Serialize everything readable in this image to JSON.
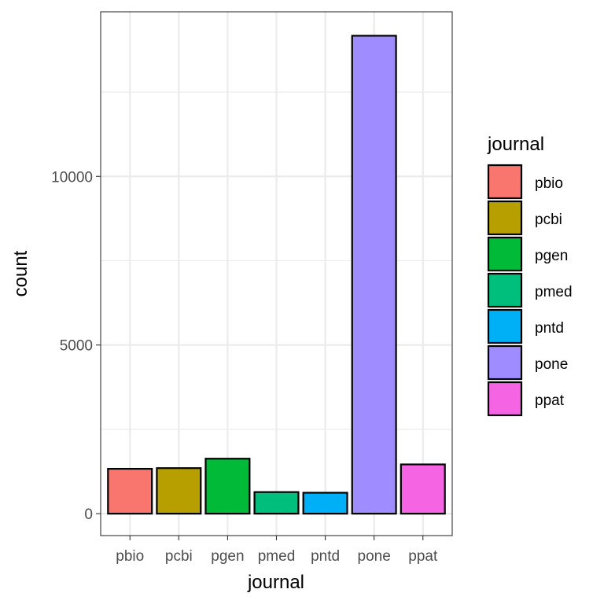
{
  "chart_data": {
    "type": "bar",
    "title": "",
    "xlabel": "journal",
    "ylabel": "count",
    "categories": [
      "pbio",
      "pcbi",
      "pgen",
      "pmed",
      "pntd",
      "pone",
      "ppat"
    ],
    "values": [
      1330,
      1350,
      1630,
      640,
      620,
      14170,
      1460
    ],
    "colors": [
      "#F8766D",
      "#B79F00",
      "#00BA38",
      "#00BF7D",
      "#00B0F6",
      "#9F8CFF",
      "#F564E3"
    ],
    "ylim": [
      -650,
      14880
    ],
    "y_ticks": [
      0,
      5000,
      10000
    ],
    "y_tick_labels": [
      "0",
      "5000",
      "10000"
    ],
    "y_minor_ticks": [
      2500,
      7500,
      12500
    ],
    "grid": true,
    "legend": {
      "title": "journal",
      "position": "right",
      "entries": [
        "pbio",
        "pcbi",
        "pgen",
        "pmed",
        "pntd",
        "pone",
        "ppat"
      ]
    }
  }
}
